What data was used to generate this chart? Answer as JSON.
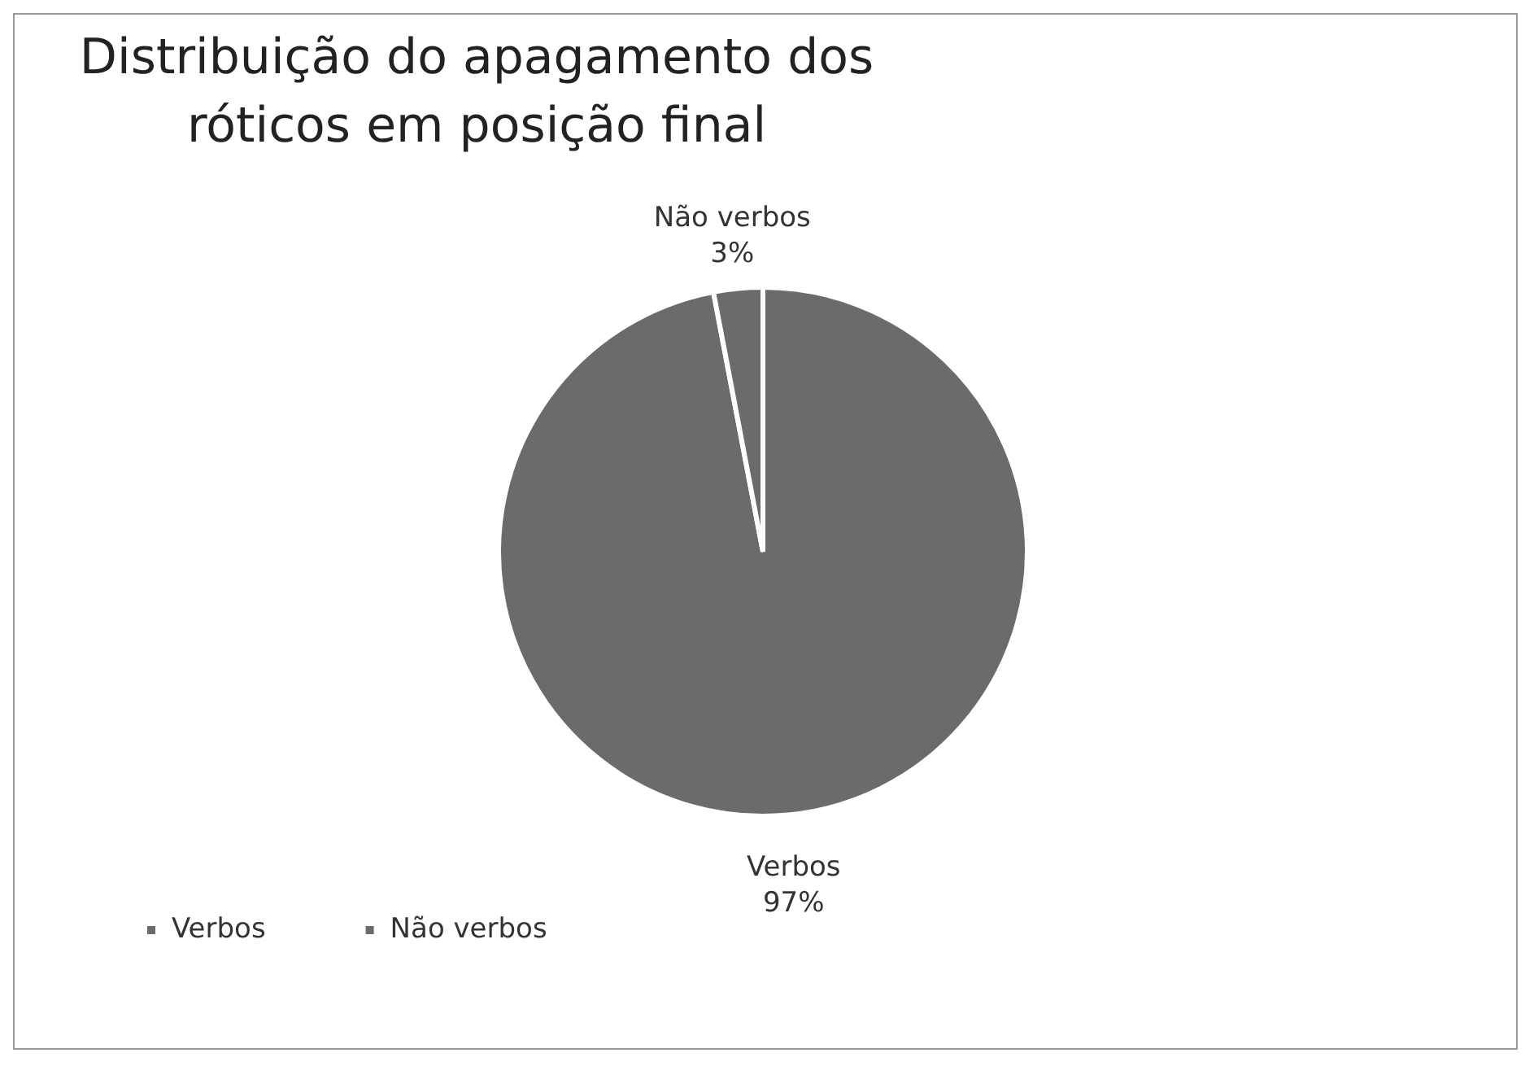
{
  "chart_data": {
    "type": "pie",
    "title": "Distribuição do apagamento dos róticos em posição final",
    "categories": [
      "Verbos",
      "Não verbos"
    ],
    "values": [
      97,
      3
    ],
    "colors": [
      "#6b6b6b",
      "#6b6b6b"
    ],
    "value_labels": [
      "97%",
      "3%"
    ],
    "legend": "bottom left"
  }
}
